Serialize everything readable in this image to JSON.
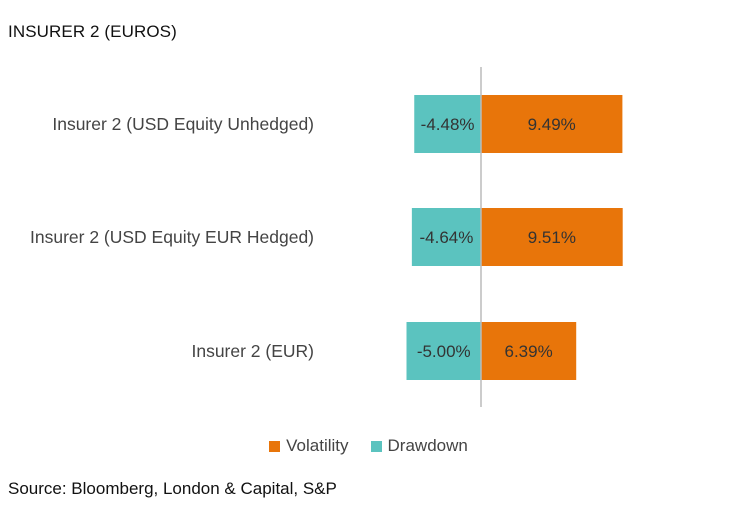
{
  "title": "INSURER 2 (EUROS)",
  "source": "Source: Bloomberg, London & Capital, S&P",
  "chart_data": {
    "type": "bar",
    "orientation": "horizontal",
    "stacked": "diverging",
    "categories": [
      "Insurer 2 (USD Equity Unhedged)",
      "Insurer 2 (USD Equity EUR Hedged)",
      "Insurer 2 (EUR)"
    ],
    "series": [
      {
        "name": "Volatility",
        "color": "#E8750A",
        "values": [
          9.49,
          9.51,
          6.39
        ],
        "labels": [
          "9.49%",
          "9.51%",
          "6.39%"
        ]
      },
      {
        "name": "Drawdown",
        "color": "#5BC3BF",
        "values": [
          -4.48,
          -4.64,
          -5.0
        ],
        "labels": [
          "-4.48%",
          "-4.64%",
          "-5.00%"
        ]
      }
    ],
    "xlim": [
      -5,
      10
    ],
    "unit": "%",
    "grid": false,
    "zero_line": true,
    "legend_position": "bottom"
  }
}
